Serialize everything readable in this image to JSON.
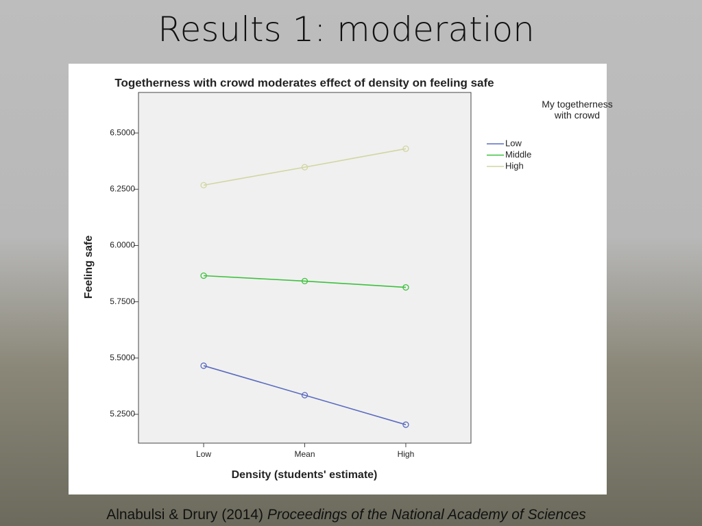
{
  "slide_title": "Results 1: moderation",
  "citation": {
    "authors": "Alnabulsi & Drury (2014)",
    "journal": "Proceedings of the National Academy of Sciences"
  },
  "chart_data": {
    "type": "line",
    "title": "Togetherness with crowd moderates effect of density on feeling safe",
    "x_label": "Density (students' estimate)",
    "y_label": "Feeling safe",
    "categories": [
      "Low",
      "Mean",
      "High"
    ],
    "legend_title": "My togetherness with crowd",
    "legend": "top-right",
    "series": [
      {
        "name": "Low",
        "color": "#5a6bbf",
        "values": [
          5.466,
          5.335,
          5.204
        ]
      },
      {
        "name": "Middle",
        "color": "#3cc03c",
        "values": [
          5.866,
          5.842,
          5.814
        ]
      },
      {
        "name": "High",
        "color": "#d2d5a0",
        "values": [
          6.268,
          6.348,
          6.43
        ]
      }
    ],
    "ylim": [
      5.122,
      6.68
    ],
    "yticks": [
      {
        "value": 5.25,
        "label": "5.2500"
      },
      {
        "value": 5.5,
        "label": "5.5000"
      },
      {
        "value": 5.75,
        "label": "5.7500"
      },
      {
        "value": 6.0,
        "label": "6.0000"
      },
      {
        "value": 6.25,
        "label": "6.2500"
      },
      {
        "value": 6.5,
        "label": "6.5000"
      }
    ],
    "grid": false
  }
}
